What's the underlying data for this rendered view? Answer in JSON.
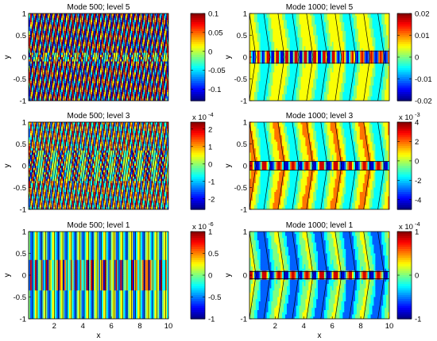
{
  "chart_data": [
    {
      "type": "heatmap",
      "title": "Mode 500; level 5",
      "xlabel": "",
      "ylabel": "y",
      "xlim": [
        0.2,
        10
      ],
      "ylim": [
        -1,
        1
      ],
      "xticks": [],
      "yticks": [
        "1",
        "0.5",
        "0",
        "-0.5",
        "-1"
      ],
      "colorbar": {
        "range": [
          -0.13,
          0.1
        ],
        "ticks": [
          "0.1",
          "0.05",
          "0",
          "-0.05",
          "-0.1"
        ],
        "exponent": "",
        "exponent_label": ""
      },
      "pattern": {
        "style": "stripes",
        "wavelength": 0.32,
        "tilt": 0.04,
        "band_halfwidth": 0.12,
        "band_wavelength": 1.4,
        "base": 0.0,
        "amplitude": 0.9,
        "palette": [
          "#0000a8",
          "#1a9cff",
          "#7cf0a0",
          "#e8e830",
          "#ff3000",
          "#800000"
        ]
      }
    },
    {
      "type": "heatmap",
      "title": "Mode 1000; level 5",
      "xlabel": "",
      "ylabel": "y",
      "xlim": [
        0.2,
        10
      ],
      "ylim": [
        -1,
        1
      ],
      "xticks": [],
      "yticks": [
        "1",
        "0.5",
        "0",
        "-0.5",
        "-1"
      ],
      "colorbar": {
        "range": [
          -0.02,
          0.02
        ],
        "ticks": [
          "0.02",
          "0.01",
          "0",
          "-0.01",
          "-0.02"
        ],
        "exponent": "",
        "exponent_label": ""
      },
      "pattern": {
        "style": "chevrons",
        "wavelength": 2.0,
        "band_halfwidth": 0.14,
        "cell_wavelength": 0.66,
        "base": 0.0,
        "amplitude": 0.35
      }
    },
    {
      "type": "heatmap",
      "title": "Mode 500; level 3",
      "xlabel": "",
      "ylabel": "y",
      "xlim": [
        0.2,
        10
      ],
      "ylim": [
        -1,
        1
      ],
      "xticks": [],
      "yticks": [
        "1",
        "0.5",
        "0",
        "-0.5",
        "-1"
      ],
      "colorbar": {
        "range": [
          -2.6,
          2.4
        ],
        "ticks": [
          "2",
          "1",
          "0",
          "-1",
          "-2"
        ],
        "exponent": "-4",
        "exponent_label": "x 10"
      },
      "pattern": {
        "style": "stripes",
        "wavelength": 0.32,
        "tilt": 0.04,
        "band_halfwidth": 0.35,
        "band_wavelength": 2.0,
        "base": 0.1,
        "amplitude": 0.7
      }
    },
    {
      "type": "heatmap",
      "title": "Mode 1000; level 3",
      "xlabel": "",
      "ylabel": "y",
      "xlim": [
        0.2,
        10
      ],
      "ylim": [
        -1,
        1
      ],
      "xticks": [],
      "yticks": [
        "1",
        "0.5",
        "0",
        "-0.5",
        "-1"
      ],
      "colorbar": {
        "range": [
          -5,
          4
        ],
        "ticks": [
          "4",
          "2",
          "0",
          "-2",
          "-4"
        ],
        "exponent": "-3",
        "exponent_label": "x 10"
      },
      "pattern": {
        "style": "chevrons",
        "wavelength": 2.0,
        "band_halfwidth": 0.1,
        "cell_wavelength": 1.0,
        "base": 0.05,
        "amplitude": 0.4
      }
    },
    {
      "type": "heatmap",
      "title": "Mode 500; level 1",
      "xlabel": "x",
      "ylabel": "y",
      "xlim": [
        0.2,
        10
      ],
      "ylim": [
        -1,
        1
      ],
      "xticks": [
        "2",
        "4",
        "6",
        "8",
        "10"
      ],
      "yticks": [
        "1",
        "0.5",
        "0",
        "-0.5",
        "-1"
      ],
      "colorbar": {
        "range": [
          -1,
          1
        ],
        "ticks": [
          "1",
          "0.5",
          "0",
          "-0.5",
          "-1"
        ],
        "exponent": "-6",
        "exponent_label": "x 10"
      },
      "pattern": {
        "style": "stripes",
        "wavelength": 0.6,
        "tilt": 0.0,
        "band_halfwidth": 0.35,
        "band_wavelength": 2.0,
        "base": -0.15,
        "amplitude": 0.5
      }
    },
    {
      "type": "heatmap",
      "title": "Mode 1000; level 1",
      "xlabel": "x",
      "ylabel": "y",
      "xlim": [
        0.2,
        10
      ],
      "ylim": [
        -1,
        1
      ],
      "xticks": [
        "2",
        "4",
        "6",
        "8",
        "10"
      ],
      "yticks": [
        "1",
        "0",
        "-1"
      ],
      "colorbar": {
        "range": [
          -1,
          1
        ],
        "ticks": [
          "1",
          "0",
          "-1"
        ],
        "exponent": "-4",
        "exponent_label": "x 10"
      },
      "pattern": {
        "style": "chevrons",
        "wavelength": 2.0,
        "band_halfwidth": 0.08,
        "cell_wavelength": 1.0,
        "base": -0.25,
        "amplitude": 0.4
      }
    }
  ]
}
